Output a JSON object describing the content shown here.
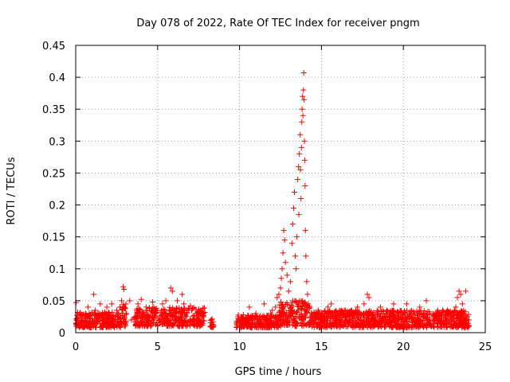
{
  "chart_data": {
    "type": "scatter",
    "title": "Day 078 of 2022, Rate Of TEC Index for receiver pngm",
    "xlabel": "GPS time / hours",
    "ylabel": "ROTI / TECUs",
    "xlim": [
      0,
      25
    ],
    "ylim": [
      0,
      0.45
    ],
    "xticks": [
      0,
      5,
      10,
      15,
      20,
      25
    ],
    "yticks": [
      0,
      0.05,
      0.1,
      0.15,
      0.2,
      0.25,
      0.3,
      0.35,
      0.4,
      0.45
    ],
    "xtick_labels": [
      "0",
      "5",
      "10",
      "15",
      "20",
      "25"
    ],
    "ytick_labels": [
      "0",
      "0.05",
      "0.1",
      "0.15",
      "0.2",
      "0.25",
      "0.3",
      "0.35",
      "0.4",
      "0.45"
    ],
    "grid": true,
    "marker": "+",
    "color": "#ff0000",
    "points": [
      [
        0.02,
        0.047
      ],
      [
        0.1,
        0.02
      ],
      [
        0.2,
        0.015
      ],
      [
        0.3,
        0.025
      ],
      [
        0.45,
        0.018
      ],
      [
        0.6,
        0.03
      ],
      [
        0.75,
        0.04
      ],
      [
        0.85,
        0.022
      ],
      [
        1.0,
        0.03
      ],
      [
        1.1,
        0.06
      ],
      [
        1.2,
        0.035
      ],
      [
        1.3,
        0.02
      ],
      [
        1.5,
        0.045
      ],
      [
        1.6,
        0.025
      ],
      [
        1.8,
        0.015
      ],
      [
        1.9,
        0.04
      ],
      [
        2.1,
        0.028
      ],
      [
        2.2,
        0.045
      ],
      [
        2.4,
        0.02
      ],
      [
        2.5,
        0.035
      ],
      [
        2.7,
        0.04
      ],
      [
        2.8,
        0.05
      ],
      [
        2.9,
        0.072
      ],
      [
        2.95,
        0.068
      ],
      [
        3.1,
        0.03
      ],
      [
        3.3,
        0.05
      ],
      [
        3.4,
        0.02
      ],
      [
        3.6,
        0.025
      ],
      [
        3.8,
        0.045
      ],
      [
        4.0,
        0.052
      ],
      [
        4.1,
        0.03
      ],
      [
        4.3,
        0.04
      ],
      [
        4.5,
        0.025
      ],
      [
        4.7,
        0.048
      ],
      [
        4.9,
        0.03
      ],
      [
        5.1,
        0.02
      ],
      [
        5.3,
        0.045
      ],
      [
        5.5,
        0.05
      ],
      [
        5.7,
        0.035
      ],
      [
        5.8,
        0.07
      ],
      [
        5.9,
        0.065
      ],
      [
        6.1,
        0.03
      ],
      [
        6.2,
        0.05
      ],
      [
        6.4,
        0.025
      ],
      [
        6.5,
        0.06
      ],
      [
        6.6,
        0.045
      ],
      [
        6.8,
        0.03
      ],
      [
        7.0,
        0.042
      ],
      [
        7.2,
        0.02
      ],
      [
        7.4,
        0.015
      ],
      [
        7.6,
        0.03
      ],
      [
        7.8,
        0.025
      ],
      [
        8.3,
        0.02
      ],
      [
        8.4,
        0.012
      ],
      [
        9.8,
        0.015
      ],
      [
        10.0,
        0.01
      ],
      [
        10.2,
        0.02
      ],
      [
        10.5,
        0.025
      ],
      [
        10.6,
        0.04
      ],
      [
        10.8,
        0.02
      ],
      [
        11.0,
        0.03
      ],
      [
        11.2,
        0.015
      ],
      [
        11.4,
        0.025
      ],
      [
        11.5,
        0.045
      ],
      [
        11.7,
        0.02
      ],
      [
        11.9,
        0.03
      ],
      [
        12.0,
        0.035
      ],
      [
        12.2,
        0.04
      ],
      [
        12.3,
        0.055
      ],
      [
        12.4,
        0.06
      ],
      [
        12.5,
        0.07
      ],
      [
        12.55,
        0.085
      ],
      [
        12.6,
        0.1
      ],
      [
        12.65,
        0.125
      ],
      [
        12.7,
        0.16
      ],
      [
        12.75,
        0.145
      ],
      [
        12.8,
        0.11
      ],
      [
        12.9,
        0.09
      ],
      [
        13.0,
        0.065
      ],
      [
        13.1,
        0.08
      ],
      [
        13.2,
        0.14
      ],
      [
        13.25,
        0.17
      ],
      [
        13.3,
        0.195
      ],
      [
        13.35,
        0.22
      ],
      [
        13.4,
        0.12
      ],
      [
        13.45,
        0.1
      ],
      [
        13.5,
        0.15
      ],
      [
        13.55,
        0.24
      ],
      [
        13.6,
        0.26
      ],
      [
        13.62,
        0.185
      ],
      [
        13.65,
        0.28
      ],
      [
        13.7,
        0.31
      ],
      [
        13.72,
        0.255
      ],
      [
        13.75,
        0.21
      ],
      [
        13.78,
        0.29
      ],
      [
        13.8,
        0.33
      ],
      [
        13.82,
        0.35
      ],
      [
        13.85,
        0.37
      ],
      [
        13.87,
        0.34
      ],
      [
        13.9,
        0.38
      ],
      [
        13.92,
        0.407
      ],
      [
        13.94,
        0.365
      ],
      [
        13.96,
        0.3
      ],
      [
        13.98,
        0.27
      ],
      [
        14.0,
        0.23
      ],
      [
        14.02,
        0.16
      ],
      [
        14.05,
        0.12
      ],
      [
        14.1,
        0.08
      ],
      [
        14.15,
        0.06
      ],
      [
        14.2,
        0.045
      ],
      [
        14.4,
        0.03
      ],
      [
        14.6,
        0.025
      ],
      [
        14.8,
        0.035
      ],
      [
        15.0,
        0.02
      ],
      [
        15.2,
        0.03
      ],
      [
        15.4,
        0.04
      ],
      [
        15.6,
        0.045
      ],
      [
        15.8,
        0.025
      ],
      [
        16.0,
        0.03
      ],
      [
        16.2,
        0.02
      ],
      [
        16.4,
        0.035
      ],
      [
        16.6,
        0.015
      ],
      [
        16.8,
        0.03
      ],
      [
        17.0,
        0.025
      ],
      [
        17.2,
        0.04
      ],
      [
        17.4,
        0.02
      ],
      [
        17.6,
        0.045
      ],
      [
        17.8,
        0.06
      ],
      [
        17.9,
        0.055
      ],
      [
        18.0,
        0.03
      ],
      [
        18.2,
        0.01
      ],
      [
        18.4,
        0.025
      ],
      [
        18.6,
        0.04
      ],
      [
        18.8,
        0.02
      ],
      [
        19.0,
        0.035
      ],
      [
        19.2,
        0.025
      ],
      [
        19.4,
        0.045
      ],
      [
        19.6,
        0.02
      ],
      [
        19.8,
        0.03
      ],
      [
        20.0,
        0.015
      ],
      [
        20.2,
        0.045
      ],
      [
        20.4,
        0.025
      ],
      [
        20.6,
        0.03
      ],
      [
        20.8,
        0.02
      ],
      [
        21.0,
        0.04
      ],
      [
        21.2,
        0.025
      ],
      [
        21.4,
        0.05
      ],
      [
        21.6,
        0.02
      ],
      [
        21.8,
        0.03
      ],
      [
        22.0,
        0.025
      ],
      [
        22.2,
        0.02
      ],
      [
        22.4,
        0.035
      ],
      [
        22.6,
        0.025
      ],
      [
        22.8,
        0.03
      ],
      [
        23.0,
        0.02
      ],
      [
        23.2,
        0.04
      ],
      [
        23.3,
        0.055
      ],
      [
        23.4,
        0.065
      ],
      [
        23.5,
        0.06
      ],
      [
        23.6,
        0.045
      ],
      [
        23.7,
        0.03
      ],
      [
        23.8,
        0.065
      ],
      [
        23.9,
        0.025
      ],
      [
        24.0,
        0.02
      ]
    ],
    "bands": [
      {
        "x0": 0.0,
        "x1": 2.8,
        "ymin": 0.008,
        "ymax": 0.032
      },
      {
        "x0": 2.8,
        "x1": 3.1,
        "ymin": 0.01,
        "ymax": 0.045
      },
      {
        "x0": 3.6,
        "x1": 7.9,
        "ymin": 0.01,
        "ymax": 0.04
      },
      {
        "x0": 8.2,
        "x1": 8.4,
        "ymin": 0.008,
        "ymax": 0.022
      },
      {
        "x0": 9.8,
        "x1": 12.4,
        "ymin": 0.008,
        "ymax": 0.028
      },
      {
        "x0": 12.4,
        "x1": 14.3,
        "ymin": 0.01,
        "ymax": 0.05
      },
      {
        "x0": 14.3,
        "x1": 24.0,
        "ymin": 0.008,
        "ymax": 0.035
      }
    ]
  }
}
